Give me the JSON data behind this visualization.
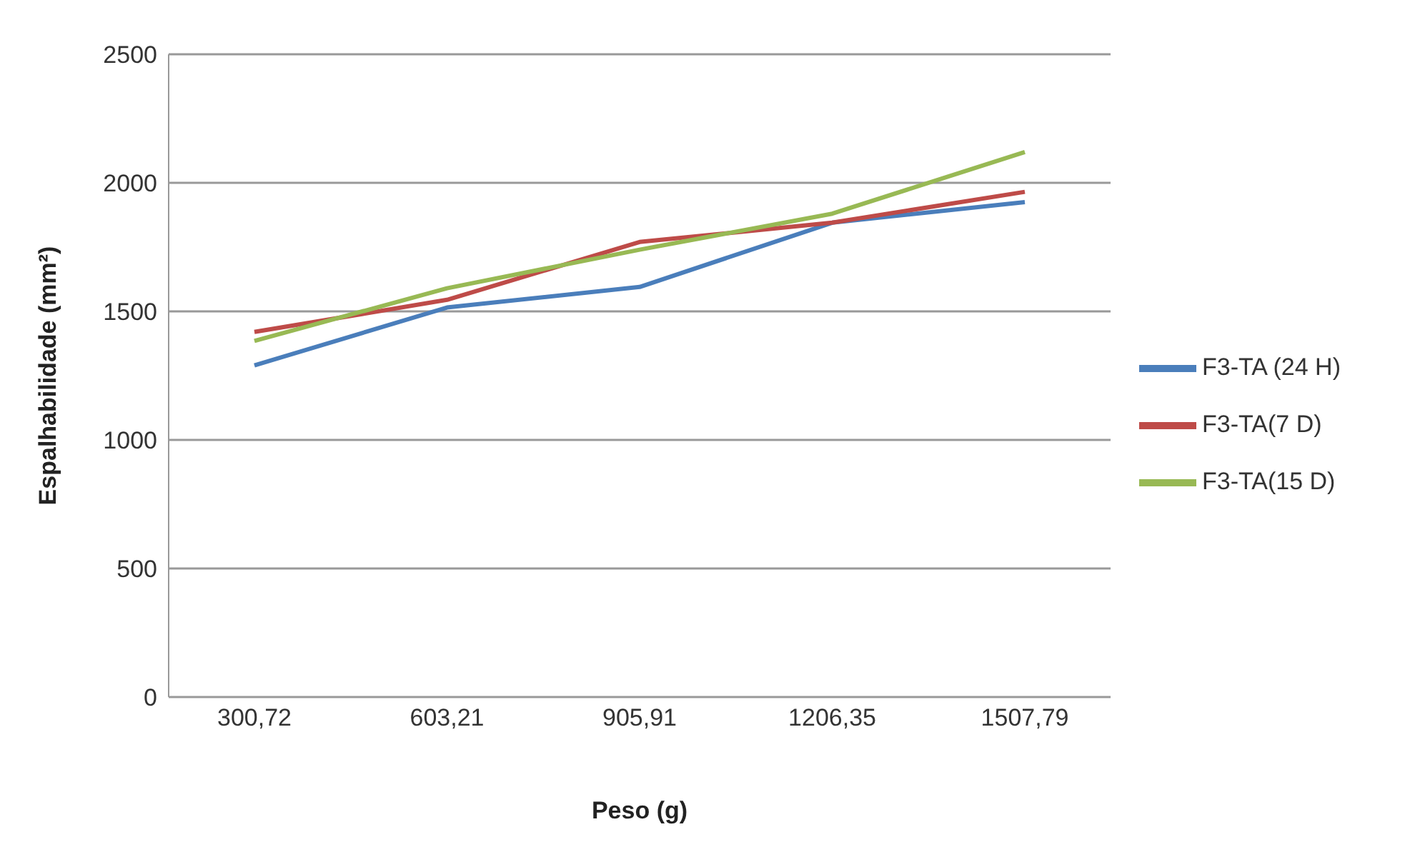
{
  "chart_data": {
    "type": "line",
    "xlabel": "Peso (g)",
    "ylabel": "Espalhabilidade (mm²)",
    "categories": [
      "300,72",
      "603,21",
      "905,91",
      "1206,35",
      "1507,79"
    ],
    "series": [
      {
        "name": "F3-TA (24 H)",
        "color": "#4a7ebb",
        "values": [
          1290,
          1515,
          1595,
          1845,
          1925
        ]
      },
      {
        "name": "F3-TA(7 D)",
        "color": "#be4b48",
        "values": [
          1420,
          1545,
          1770,
          1845,
          1965
        ]
      },
      {
        "name": "F3-TA(15 D)",
        "color": "#98b954",
        "values": [
          1385,
          1590,
          1740,
          1880,
          2120
        ]
      }
    ],
    "ylim": [
      0,
      2500
    ],
    "yticks": [
      0,
      500,
      1000,
      1500,
      2000,
      2500
    ],
    "grid": "y",
    "legend": "right",
    "marker": "none"
  }
}
